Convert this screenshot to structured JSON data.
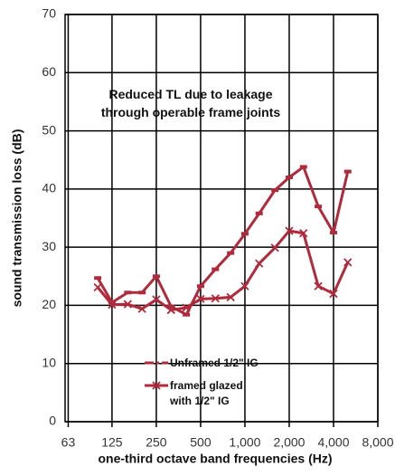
{
  "chart_data": {
    "type": "line",
    "annotation": [
      "Reduced TL due to leakage",
      "through operable frame joints"
    ],
    "xlabel": "one-third octave band frequencies (Hz)",
    "ylabel": "sound transmission loss (dB)",
    "x": [
      100,
      125,
      160,
      200,
      250,
      315,
      400,
      500,
      630,
      800,
      1000,
      1250,
      1600,
      2000,
      2500,
      3150,
      4000,
      5000
    ],
    "series": [
      {
        "name": "Unframed 1/2\" IG",
        "color": "#b02a3c",
        "marker": "dash",
        "values": [
          24.7,
          20.5,
          22.2,
          22.2,
          25,
          19.8,
          18.4,
          23.3,
          26.2,
          29,
          32.3,
          35.8,
          39.8,
          42,
          43.8,
          37,
          32.5,
          43
        ]
      },
      {
        "name": "framed glazed with 1/2\" IG",
        "color": "#b02a3c",
        "marker": "x",
        "values": [
          23.1,
          20.1,
          20.2,
          19.4,
          21,
          19.2,
          19.6,
          21.1,
          21.2,
          21.4,
          23.3,
          27.2,
          29.9,
          32.8,
          32.4,
          23.3,
          22,
          27.4
        ]
      }
    ],
    "xscale": "log",
    "xlim": [
      60,
      8000
    ],
    "xticks": [
      63,
      125,
      250,
      500,
      {
        "value": 1000,
        "label": "1,000"
      },
      {
        "value": 2000,
        "label": "2,000"
      },
      {
        "value": 4000,
        "label": "4,000"
      },
      {
        "value": 8000,
        "label": "8,000"
      }
    ],
    "ylim": [
      0,
      70
    ],
    "yticks": [
      0,
      10,
      20,
      30,
      40,
      50,
      60,
      70
    ],
    "grid": true
  }
}
